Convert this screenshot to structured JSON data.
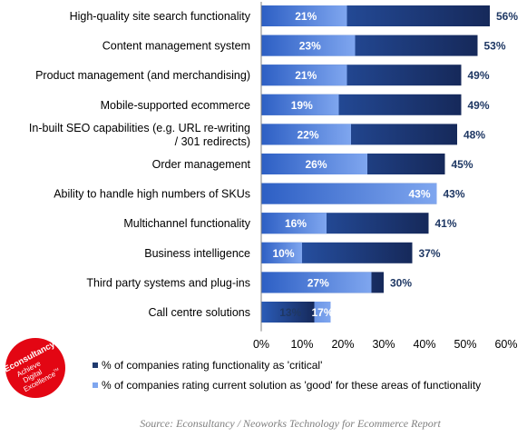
{
  "chart_data": {
    "type": "bar",
    "orientation": "horizontal",
    "categories": [
      [
        "High-quality site search functionality"
      ],
      [
        "Content management system"
      ],
      [
        "Product management (and merchandising)"
      ],
      [
        "Mobile-supported ecommerce"
      ],
      [
        "In-built SEO capabilities (e.g. URL re-writing",
        "/ 301 redirects)"
      ],
      [
        "Order management"
      ],
      [
        "Ability to handle high numbers of SKUs"
      ],
      [
        "Multichannel functionality"
      ],
      [
        "Business intelligence"
      ],
      [
        "Third party systems and plug-ins"
      ],
      [
        "Call centre solutions"
      ]
    ],
    "series": [
      {
        "name": "% of companies rating functionality as 'critical'",
        "values": [
          56,
          53,
          49,
          49,
          48,
          45,
          43,
          41,
          37,
          30,
          13
        ],
        "color": "#1f3a6e"
      },
      {
        "name": "% of companies rating current solution as 'good' for these areas of functionality",
        "values": [
          21,
          23,
          21,
          19,
          22,
          26,
          43,
          16,
          10,
          27,
          17
        ],
        "color": "#4472c4"
      }
    ],
    "value_labels": {
      "critical": [
        "56%",
        "53%",
        "49%",
        "49%",
        "48%",
        "45%",
        "43%",
        "41%",
        "37%",
        "30%",
        "13%"
      ],
      "good": [
        "21%",
        "23%",
        "21%",
        "19%",
        "22%",
        "26%",
        "43%",
        "16%",
        "10%",
        "27%",
        "17%"
      ]
    },
    "xlim": [
      0,
      60
    ],
    "xticks": [
      0,
      10,
      20,
      30,
      40,
      50,
      60
    ],
    "xtick_labels": [
      "0%",
      "10%",
      "20%",
      "30%",
      "40%",
      "50%",
      "60%"
    ],
    "legend_position": "bottom",
    "grid": false
  },
  "logo": {
    "brand": "Econsultancy",
    "tagline": [
      "Achieve",
      "Digital",
      "Excellence"
    ],
    "mark": "TM",
    "color": "#e30613"
  },
  "source": "Source: Econsultancy / Neoworks Technology for Ecommerce Report"
}
